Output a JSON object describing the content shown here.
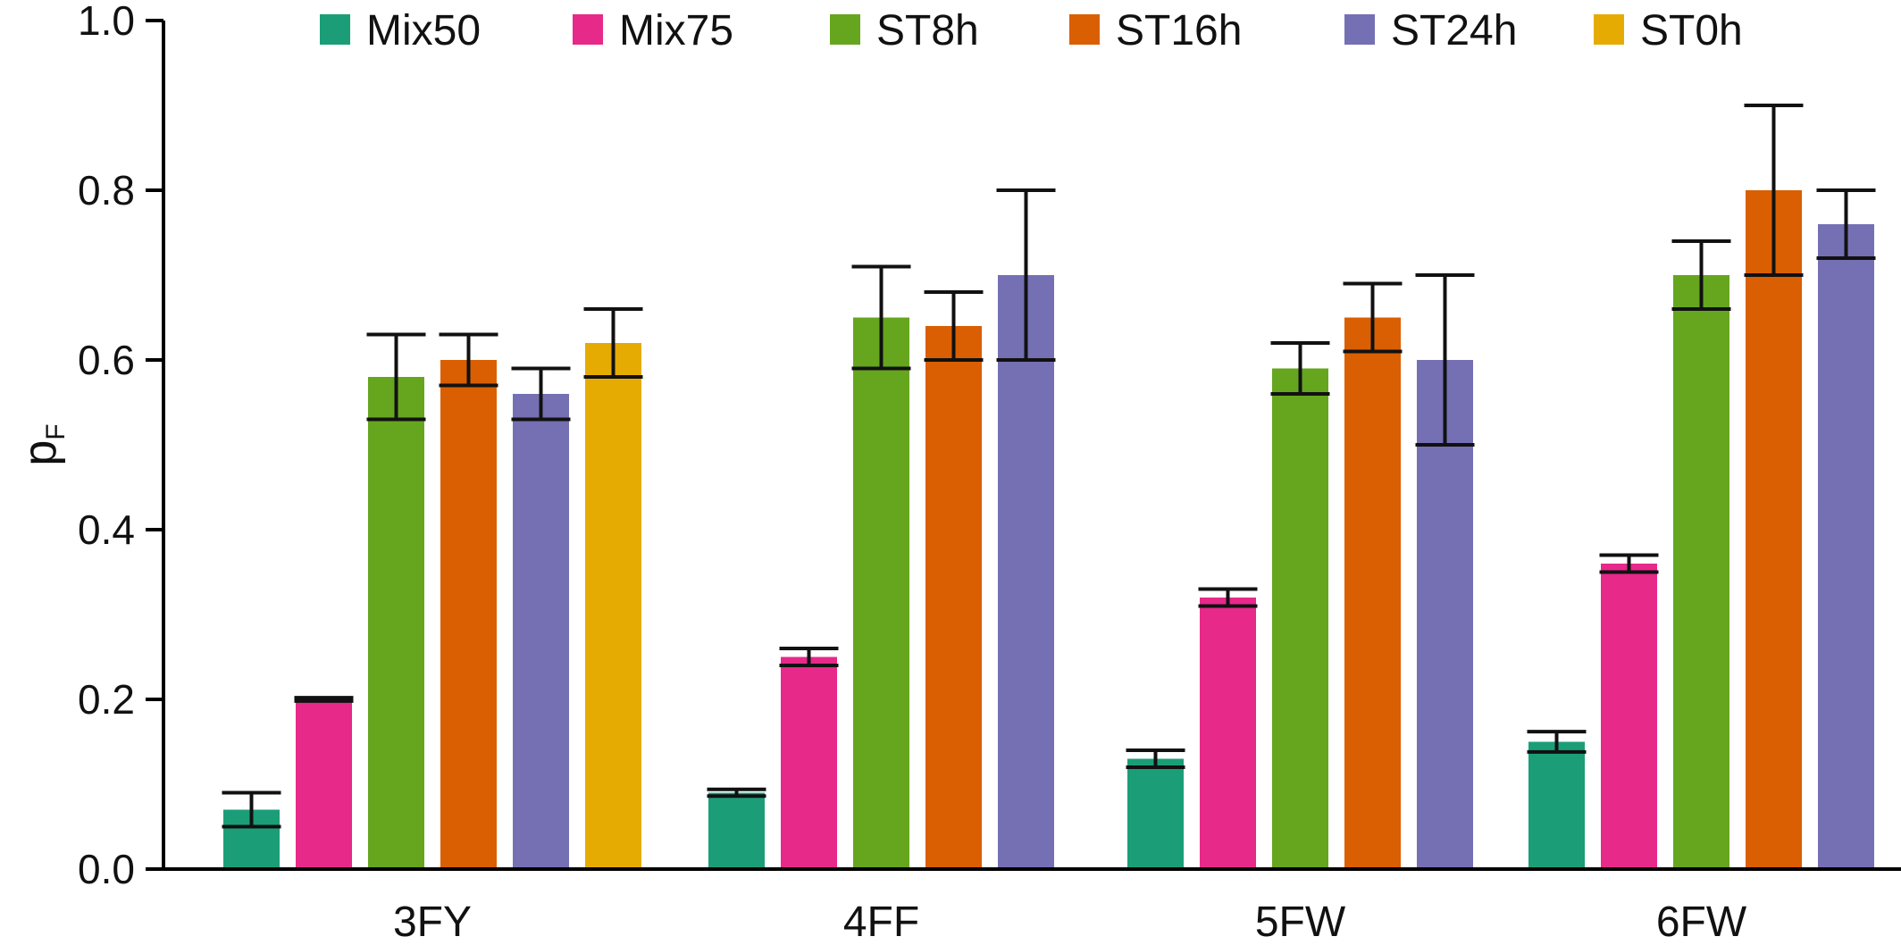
{
  "chart_data": {
    "type": "bar",
    "categories": [
      "3FY",
      "4FF",
      "5FW",
      "6FW"
    ],
    "ylabel": "p",
    "ylabel_sub": "F",
    "xlabel": "",
    "title": "",
    "ylim": [
      0.0,
      1.0
    ],
    "yticks": [
      "0.0",
      "0.2",
      "0.4",
      "0.6",
      "0.8",
      "1.0"
    ],
    "legend_position": "top",
    "grid": false,
    "error_bars": true,
    "series": [
      {
        "name": "Mix50",
        "color": "#1b9e77",
        "values": [
          0.07,
          0.09,
          0.13,
          0.15
        ],
        "errors": [
          0.02,
          0.004,
          0.01,
          0.012
        ]
      },
      {
        "name": "Mix75",
        "color": "#e7298a",
        "values": [
          0.2,
          0.25,
          0.32,
          0.36
        ],
        "errors": [
          0.002,
          0.01,
          0.01,
          0.01
        ]
      },
      {
        "name": "ST8h",
        "color": "#66a61e",
        "values": [
          0.58,
          0.65,
          0.59,
          0.7
        ],
        "errors": [
          0.05,
          0.06,
          0.03,
          0.04
        ]
      },
      {
        "name": "ST16h",
        "color": "#d95f02",
        "values": [
          0.6,
          0.64,
          0.65,
          0.8
        ],
        "errors": [
          0.03,
          0.04,
          0.04,
          0.1
        ]
      },
      {
        "name": "ST24h",
        "color": "#7570b3",
        "values": [
          0.56,
          0.7,
          0.6,
          0.76
        ],
        "errors": [
          0.03,
          0.1,
          0.1,
          0.04
        ]
      },
      {
        "name": "ST0h",
        "color": "#e6ab02",
        "values": [
          0.62,
          null,
          null,
          null
        ],
        "errors": [
          0.04,
          null,
          null,
          null
        ]
      }
    ]
  }
}
